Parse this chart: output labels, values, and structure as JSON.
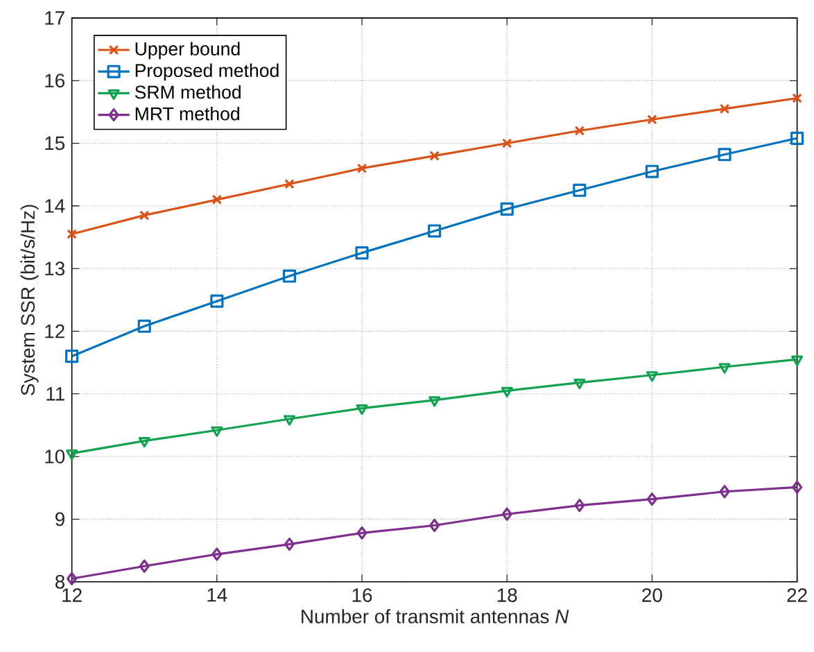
{
  "chart_data": {
    "type": "line",
    "xlabel": "Number of transmit antennas *N*",
    "ylabel": "System SSR (bit/s/Hz)",
    "x": [
      12,
      13,
      14,
      15,
      16,
      17,
      18,
      19,
      20,
      21,
      22
    ],
    "series": [
      {
        "name": "Upper bound",
        "color": "#d95319",
        "marker": "cross",
        "values": [
          13.55,
          13.85,
          14.1,
          14.35,
          14.6,
          14.8,
          15.0,
          15.2,
          15.38,
          15.55,
          15.72
        ]
      },
      {
        "name": "Proposed method",
        "color": "#0072bd",
        "marker": "square",
        "values": [
          11.6,
          12.08,
          12.48,
          12.88,
          13.25,
          13.6,
          13.95,
          14.25,
          14.55,
          14.82,
          15.08
        ]
      },
      {
        "name": "SRM method",
        "color": "#12a150",
        "marker": "triangle",
        "values": [
          10.05,
          10.25,
          10.42,
          10.6,
          10.77,
          10.9,
          11.05,
          11.18,
          11.3,
          11.43,
          11.55
        ]
      },
      {
        "name": "MRT method",
        "color": "#7e2f8e",
        "marker": "diamond",
        "values": [
          8.05,
          8.25,
          8.44,
          8.6,
          8.78,
          8.9,
          9.08,
          9.22,
          9.32,
          9.44,
          9.51
        ]
      }
    ],
    "xlim": [
      12,
      22
    ],
    "xticks": [
      12,
      14,
      16,
      18,
      20,
      22
    ],
    "ylim": [
      8,
      17
    ],
    "yticks": [
      8,
      9,
      10,
      11,
      12,
      13,
      14,
      15,
      16,
      17
    ],
    "grid": true,
    "legend": "top left",
    "line_style": "solid"
  }
}
